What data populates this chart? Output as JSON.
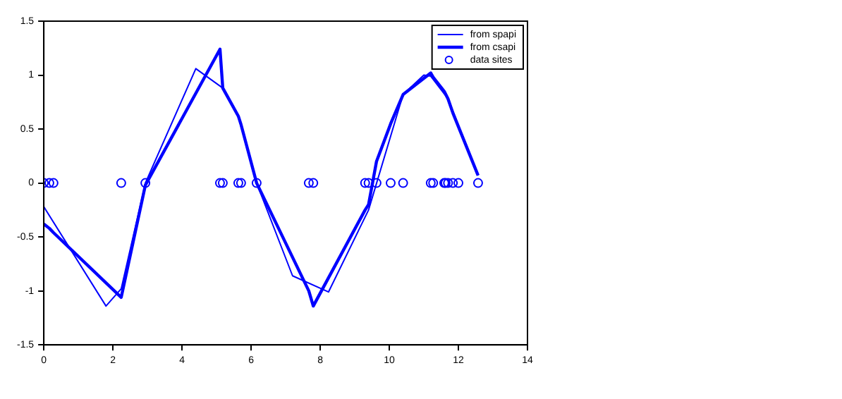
{
  "chart_data": {
    "type": "line",
    "legend": "top right",
    "grid": false,
    "xlim": [
      0,
      14
    ],
    "xticks": [
      0,
      2,
      4,
      6,
      8,
      10,
      12,
      14
    ],
    "ylim": [
      -1.5,
      1.5
    ],
    "yticks": [
      -1.5,
      -1,
      -0.5,
      0,
      0.5,
      1,
      1.5
    ],
    "series": [
      {
        "name": "from spapi",
        "color": "#0000ff",
        "marker": "none",
        "x": [
          0,
          1.8,
          2.24,
          2.94,
          4.4,
          5.18,
          5.63,
          6.16,
          7.2,
          8.24,
          9.4,
          10.4,
          11.0,
          11.2,
          11.7,
          12.57
        ],
        "values": [
          -0.22,
          -1.14,
          -0.98,
          0.0,
          1.06,
          0.88,
          0.62,
          0.0,
          -0.86,
          -1.01,
          -0.25,
          0.82,
          1.0,
          0.99,
          0.78,
          0.07
        ]
      },
      {
        "name": "from csapi",
        "color": "#0000ff",
        "marker": "none",
        "x": [
          0,
          0.16,
          0.28,
          2.24,
          2.94,
          5.1,
          5.18,
          5.63,
          5.71,
          6.16,
          7.67,
          7.8,
          9.3,
          9.4,
          9.63,
          10.04,
          10.4,
          11.2,
          11.27,
          11.59,
          11.7,
          11.84,
          12.57
        ],
        "values": [
          -0.38,
          -0.42,
          -0.46,
          -1.06,
          -0.02,
          1.24,
          0.88,
          0.62,
          0.54,
          0.0,
          -1.0,
          -1.14,
          -0.25,
          -0.2,
          0.2,
          0.55,
          0.82,
          1.02,
          0.98,
          0.85,
          0.78,
          0.65,
          0.07
        ]
      },
      {
        "name": "data sites",
        "color": "#0000ff",
        "type": "scatter",
        "marker": "circle",
        "x": [
          0,
          0.16,
          0.28,
          2.24,
          2.94,
          5.1,
          5.18,
          5.63,
          5.71,
          6.16,
          7.67,
          7.8,
          9.3,
          9.4,
          9.63,
          10.04,
          10.4,
          11.2,
          11.27,
          11.59,
          11.63,
          11.7,
          11.84,
          12.0,
          12.57
        ],
        "values": [
          0,
          0,
          0,
          0,
          0,
          0,
          0,
          0,
          0,
          0,
          0,
          0,
          0,
          0,
          0,
          0,
          0,
          0,
          0,
          0,
          0,
          0,
          0,
          0,
          0
        ]
      }
    ]
  }
}
